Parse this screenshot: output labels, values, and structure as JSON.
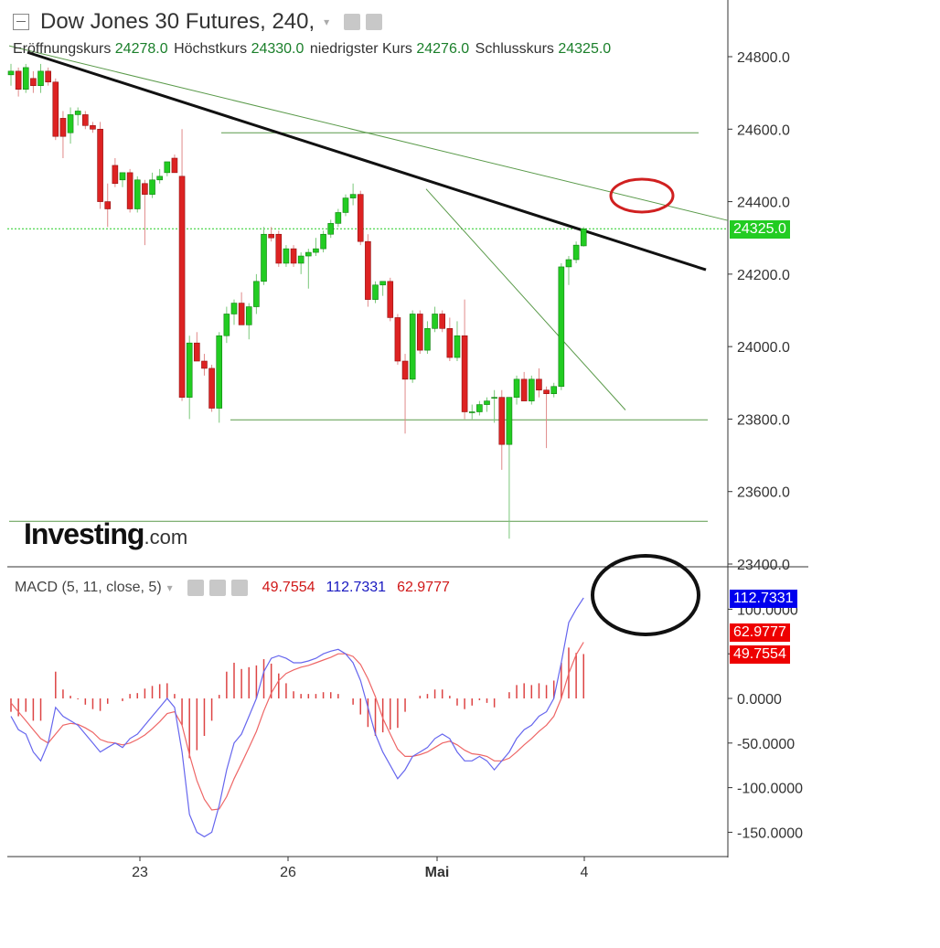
{
  "header": {
    "title": "Dow Jones 30 Futures, 240,",
    "open_label": "Eröffnungskurs",
    "open_value": "24278.0",
    "high_label": "Höchstkurs",
    "high_value": "24330.0",
    "low_label": "niedrigster Kurs",
    "low_value": "24276.0",
    "close_label": "Schlusskurs",
    "close_value": "24325.0"
  },
  "macd_header": {
    "label": "MACD (5, 11, close, 5)",
    "hist_value": "49.7554",
    "macd_value": "112.7331",
    "signal_value": "62.9777"
  },
  "logo": {
    "brand": "Investing",
    "suffix": ".com"
  },
  "badges": {
    "last_price": "24325.0",
    "macd": "112.7331",
    "signal": "62.9777",
    "hist": "49.7554"
  },
  "colors": {
    "up": "#22cc22",
    "down": "#dd2222",
    "macd_line": "#6666ee",
    "signal_line": "#ee6666",
    "hist": "#dd4444",
    "trend_black": "#111111",
    "trend_green": "#5a9a4a",
    "price_badge": "#22cc22",
    "macd_badge": "#0000ee",
    "signal_badge": "#ee0000"
  },
  "chart_data": [
    {
      "type": "candlestick",
      "y_ticks": [
        "24800.0",
        "24600.0",
        "24400.0",
        "24200.0",
        "24000.0",
        "23800.0",
        "23600.0",
        "23400.0"
      ],
      "ylim": [
        23400,
        24850
      ],
      "x_ticks": [
        "23",
        "26",
        "Mai",
        "4"
      ],
      "candles": [
        {
          "o": 24750,
          "h": 24780,
          "l": 24720,
          "c": 24760
        },
        {
          "o": 24760,
          "h": 24770,
          "l": 24690,
          "c": 24710
        },
        {
          "o": 24710,
          "h": 24780,
          "l": 24700,
          "c": 24770
        },
        {
          "o": 24740,
          "h": 24760,
          "l": 24700,
          "c": 24720
        },
        {
          "o": 24720,
          "h": 24780,
          "l": 24700,
          "c": 24760
        },
        {
          "o": 24760,
          "h": 24770,
          "l": 24720,
          "c": 24730
        },
        {
          "o": 24730,
          "h": 24740,
          "l": 24570,
          "c": 24580
        },
        {
          "o": 24630,
          "h": 24650,
          "l": 24520,
          "c": 24580
        },
        {
          "o": 24590,
          "h": 24660,
          "l": 24560,
          "c": 24640
        },
        {
          "o": 24640,
          "h": 24660,
          "l": 24610,
          "c": 24650
        },
        {
          "o": 24640,
          "h": 24650,
          "l": 24600,
          "c": 24610
        },
        {
          "o": 24610,
          "h": 24620,
          "l": 24590,
          "c": 24600
        },
        {
          "o": 24600,
          "h": 24620,
          "l": 24380,
          "c": 24400
        },
        {
          "o": 24400,
          "h": 24450,
          "l": 24330,
          "c": 24380
        },
        {
          "o": 24500,
          "h": 24520,
          "l": 24440,
          "c": 24450
        },
        {
          "o": 24460,
          "h": 24480,
          "l": 24440,
          "c": 24480
        },
        {
          "o": 24480,
          "h": 24490,
          "l": 24370,
          "c": 24380
        },
        {
          "o": 24380,
          "h": 24470,
          "l": 24370,
          "c": 24460
        },
        {
          "o": 24450,
          "h": 24460,
          "l": 24280,
          "c": 24420
        },
        {
          "o": 24420,
          "h": 24480,
          "l": 24410,
          "c": 24460
        },
        {
          "o": 24460,
          "h": 24490,
          "l": 24450,
          "c": 24470
        },
        {
          "o": 24480,
          "h": 24510,
          "l": 24470,
          "c": 24510
        },
        {
          "o": 24520,
          "h": 24530,
          "l": 24480,
          "c": 24480
        },
        {
          "o": 24470,
          "h": 24600,
          "l": 23850,
          "c": 23860
        },
        {
          "o": 23860,
          "h": 24030,
          "l": 23800,
          "c": 24010
        },
        {
          "o": 24010,
          "h": 24040,
          "l": 23970,
          "c": 23960
        },
        {
          "o": 23960,
          "h": 23980,
          "l": 23920,
          "c": 23940
        },
        {
          "o": 23940,
          "h": 23950,
          "l": 23820,
          "c": 23830
        },
        {
          "o": 23830,
          "h": 24040,
          "l": 23790,
          "c": 24030
        },
        {
          "o": 24030,
          "h": 24110,
          "l": 24010,
          "c": 24090
        },
        {
          "o": 24090,
          "h": 24130,
          "l": 24060,
          "c": 24120
        },
        {
          "o": 24120,
          "h": 24150,
          "l": 24060,
          "c": 24060
        },
        {
          "o": 24060,
          "h": 24120,
          "l": 24020,
          "c": 24110
        },
        {
          "o": 24110,
          "h": 24200,
          "l": 24090,
          "c": 24180
        },
        {
          "o": 24180,
          "h": 24330,
          "l": 24170,
          "c": 24310
        },
        {
          "o": 24310,
          "h": 24330,
          "l": 24290,
          "c": 24300
        },
        {
          "o": 24310,
          "h": 24320,
          "l": 24220,
          "c": 24230
        },
        {
          "o": 24230,
          "h": 24280,
          "l": 24220,
          "c": 24270
        },
        {
          "o": 24270,
          "h": 24280,
          "l": 24220,
          "c": 24230
        },
        {
          "o": 24230,
          "h": 24260,
          "l": 24200,
          "c": 24250
        },
        {
          "o": 24250,
          "h": 24270,
          "l": 24160,
          "c": 24260
        },
        {
          "o": 24260,
          "h": 24300,
          "l": 24250,
          "c": 24270
        },
        {
          "o": 24270,
          "h": 24320,
          "l": 24260,
          "c": 24310
        },
        {
          "o": 24310,
          "h": 24350,
          "l": 24300,
          "c": 24340
        },
        {
          "o": 24340,
          "h": 24380,
          "l": 24330,
          "c": 24370
        },
        {
          "o": 24370,
          "h": 24420,
          "l": 24360,
          "c": 24410
        },
        {
          "o": 24410,
          "h": 24450,
          "l": 24390,
          "c": 24420
        },
        {
          "o": 24420,
          "h": 24430,
          "l": 24280,
          "c": 24290
        },
        {
          "o": 24290,
          "h": 24310,
          "l": 24110,
          "c": 24130
        },
        {
          "o": 24130,
          "h": 24180,
          "l": 24120,
          "c": 24170
        },
        {
          "o": 24170,
          "h": 24180,
          "l": 24140,
          "c": 24180
        },
        {
          "o": 24180,
          "h": 24190,
          "l": 24070,
          "c": 24080
        },
        {
          "o": 24080,
          "h": 24090,
          "l": 23950,
          "c": 23960
        },
        {
          "o": 23960,
          "h": 23980,
          "l": 23760,
          "c": 23910
        },
        {
          "o": 23910,
          "h": 24100,
          "l": 23900,
          "c": 24090
        },
        {
          "o": 24090,
          "h": 24100,
          "l": 23980,
          "c": 23990
        },
        {
          "o": 23990,
          "h": 24070,
          "l": 23980,
          "c": 24050
        },
        {
          "o": 24050,
          "h": 24110,
          "l": 24040,
          "c": 24090
        },
        {
          "o": 24090,
          "h": 24100,
          "l": 24040,
          "c": 24050
        },
        {
          "o": 24050,
          "h": 24080,
          "l": 23960,
          "c": 23970
        },
        {
          "o": 23970,
          "h": 24070,
          "l": 23960,
          "c": 24030
        },
        {
          "o": 24030,
          "h": 24130,
          "l": 23800,
          "c": 23820
        },
        {
          "o": 23820,
          "h": 23840,
          "l": 23800,
          "c": 23820
        },
        {
          "o": 23820,
          "h": 23850,
          "l": 23810,
          "c": 23840
        },
        {
          "o": 23840,
          "h": 23860,
          "l": 23820,
          "c": 23850
        },
        {
          "o": 23860,
          "h": 23880,
          "l": 23790,
          "c": 23860
        },
        {
          "o": 23860,
          "h": 23880,
          "l": 23660,
          "c": 23730
        },
        {
          "o": 23730,
          "h": 23860,
          "l": 23470,
          "c": 23860
        },
        {
          "o": 23860,
          "h": 23920,
          "l": 23840,
          "c": 23910
        },
        {
          "o": 23910,
          "h": 23930,
          "l": 23850,
          "c": 23850
        },
        {
          "o": 23850,
          "h": 23920,
          "l": 23840,
          "c": 23910
        },
        {
          "o": 23910,
          "h": 23940,
          "l": 23860,
          "c": 23880
        },
        {
          "o": 23880,
          "h": 23890,
          "l": 23720,
          "c": 23870
        },
        {
          "o": 23870,
          "h": 23900,
          "l": 23860,
          "c": 23890
        },
        {
          "o": 23890,
          "h": 24230,
          "l": 23880,
          "c": 24220
        },
        {
          "o": 24220,
          "h": 24250,
          "l": 24170,
          "c": 24240
        },
        {
          "o": 24240,
          "h": 24290,
          "l": 24230,
          "c": 24280
        },
        {
          "o": 24278,
          "h": 24330,
          "l": 24276,
          "c": 24325
        }
      ]
    },
    {
      "type": "macd",
      "y_ticks": [
        "100.0000",
        "50.0000",
        "0.0000",
        "-50.0000",
        "-100.0000",
        "-150.0000"
      ],
      "ylim": [
        -175,
        135
      ],
      "macd": [
        -20,
        -35,
        -40,
        -60,
        -70,
        -50,
        -10,
        -20,
        -25,
        -30,
        -40,
        -50,
        -60,
        -55,
        -50,
        -55,
        -45,
        -40,
        -30,
        -20,
        -10,
        0,
        -10,
        -60,
        -130,
        -150,
        -155,
        -150,
        -120,
        -80,
        -50,
        -40,
        -20,
        0,
        30,
        45,
        48,
        45,
        40,
        40,
        42,
        45,
        50,
        53,
        55,
        50,
        40,
        20,
        -10,
        -40,
        -60,
        -75,
        -90,
        -80,
        -65,
        -60,
        -55,
        -45,
        -40,
        -45,
        -60,
        -70,
        -70,
        -65,
        -70,
        -80,
        -70,
        -60,
        -45,
        -35,
        -30,
        -20,
        -15,
        0,
        40,
        85,
        100,
        112.7331
      ],
      "signal": [
        -5,
        -15,
        -25,
        -35,
        -45,
        -50,
        -40,
        -30,
        -28,
        -29,
        -33,
        -38,
        -46,
        -49,
        -50,
        -52,
        -50,
        -46,
        -41,
        -34,
        -26,
        -17,
        -15,
        -30,
        -63,
        -92,
        -113,
        -125,
        -124,
        -110,
        -90,
        -73,
        -55,
        -37,
        -14,
        6,
        20,
        28,
        32,
        35,
        37,
        40,
        43,
        46,
        50,
        50,
        47,
        38,
        22,
        2,
        -22,
        -40,
        -57,
        -65,
        -65,
        -63,
        -60,
        -55,
        -50,
        -48,
        -52,
        -58,
        -62,
        -63,
        -65,
        -70,
        -70,
        -67,
        -60,
        -52,
        -45,
        -37,
        -30,
        -20,
        0,
        28,
        49,
        62.9777
      ],
      "histogram": [
        -15,
        -20,
        -15,
        -25,
        -25,
        0,
        30,
        10,
        3,
        -1,
        -7,
        -12,
        -14,
        -6,
        0,
        -3,
        5,
        6,
        11,
        14,
        16,
        17,
        5,
        -30,
        -67,
        -58,
        -42,
        -25,
        4,
        30,
        40,
        33,
        35,
        37,
        44,
        39,
        28,
        17,
        8,
        5,
        5,
        5,
        7,
        7,
        5,
        0,
        -7,
        -18,
        -32,
        -42,
        -38,
        -35,
        -33,
        -15,
        0,
        3,
        5,
        10,
        10,
        3,
        -8,
        -12,
        -8,
        -2,
        -5,
        -10,
        0,
        7,
        15,
        17,
        15,
        17,
        15,
        20,
        40,
        57,
        51,
        49.7554
      ]
    }
  ]
}
